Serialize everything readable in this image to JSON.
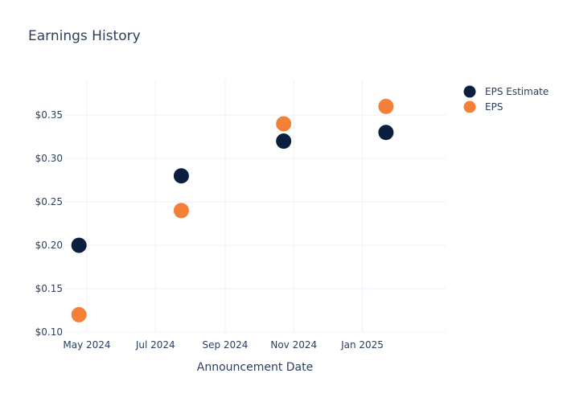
{
  "chart_data": {
    "type": "scatter",
    "title": "Earnings History",
    "xlabel": "Announcement Date",
    "ylabel": "",
    "x_ticks": [
      "May 2024",
      "Jul 2024",
      "Sep 2024",
      "Nov 2024",
      "Jan 2025"
    ],
    "x_tick_dates": [
      "2024-05-01",
      "2024-07-01",
      "2024-09-01",
      "2024-11-01",
      "2025-01-01"
    ],
    "x_range": [
      "2024-04-11",
      "2025-03-16"
    ],
    "y_ticks": [
      "$0.10",
      "$0.15",
      "$0.20",
      "$0.25",
      "$0.30",
      "$0.35"
    ],
    "y_tick_values": [
      0.1,
      0.15,
      0.2,
      0.25,
      0.3,
      0.35
    ],
    "ylim": [
      0.1,
      0.39
    ],
    "grid": true,
    "legend_position": "top-right",
    "series": [
      {
        "name": "EPS Estimate",
        "color": "#0b1f3f",
        "points": [
          {
            "x": "2024-04-24",
            "y": 0.2
          },
          {
            "x": "2024-07-24",
            "y": 0.28
          },
          {
            "x": "2024-10-23",
            "y": 0.32
          },
          {
            "x": "2025-01-22",
            "y": 0.33
          }
        ]
      },
      {
        "name": "EPS",
        "color": "#f47f37",
        "points": [
          {
            "x": "2024-04-24",
            "y": 0.12
          },
          {
            "x": "2024-07-24",
            "y": 0.24
          },
          {
            "x": "2024-10-23",
            "y": 0.34
          },
          {
            "x": "2025-01-22",
            "y": 0.36
          }
        ]
      }
    ]
  }
}
